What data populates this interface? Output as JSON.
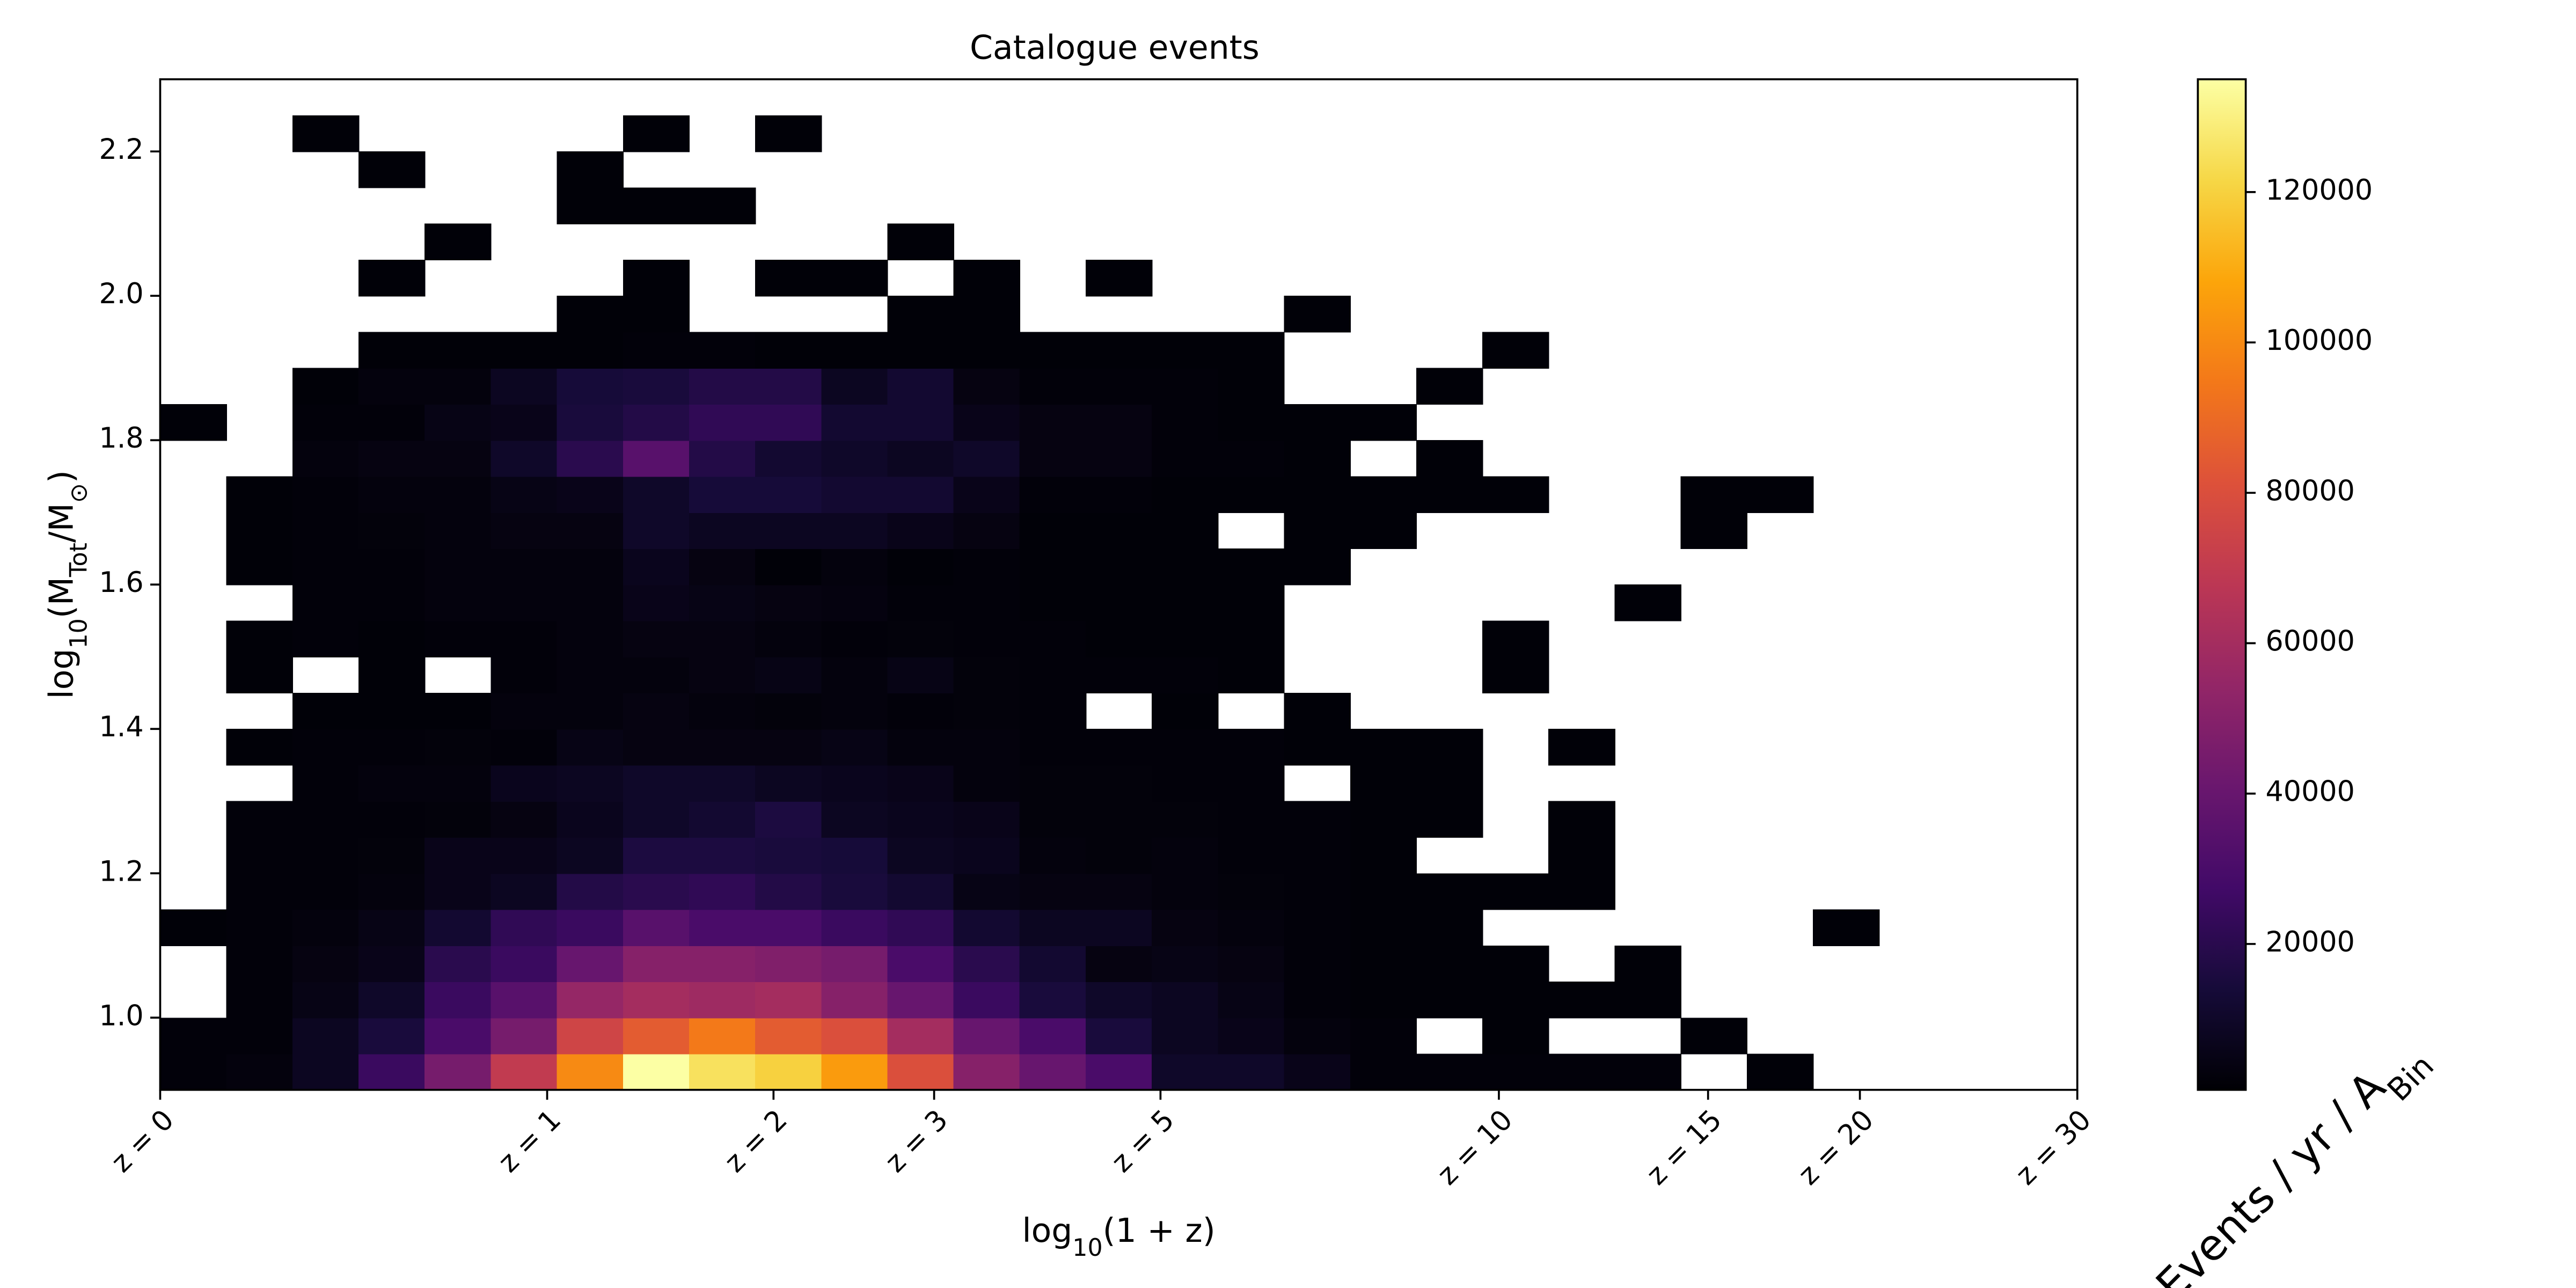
{
  "chart_data": {
    "type": "hist2d",
    "title": "Catalogue events",
    "xlabel": [
      "log",
      "10",
      "(1 + z)"
    ],
    "ylabel": [
      "log",
      "10",
      "(M",
      "Tot",
      "/M",
      "⊙",
      ")"
    ],
    "colorbar_label": [
      "Events / yr / A",
      "Bin"
    ],
    "colormap": "inferno",
    "xlim": [
      0,
      1.49136
    ],
    "ylim": [
      0.9,
      2.3
    ],
    "clim": [
      600,
      135000
    ],
    "xticks": [
      {
        "value": 0,
        "label": "z = 0"
      },
      {
        "value": 0.30103,
        "label": "z = 1"
      },
      {
        "value": 0.47712,
        "label": "z = 2"
      },
      {
        "value": 0.60206,
        "label": "z = 3"
      },
      {
        "value": 0.77815,
        "label": "z = 5"
      },
      {
        "value": 1.04139,
        "label": "z = 10"
      },
      {
        "value": 1.20412,
        "label": "z = 15"
      },
      {
        "value": 1.32222,
        "label": "z = 20"
      },
      {
        "value": 1.49136,
        "label": "z = 30"
      }
    ],
    "yticks": [
      {
        "value": 1,
        "label": "1.0"
      },
      1.2,
      1.4,
      1.6,
      1.8,
      {
        "value": 2,
        "label": "2.0"
      },
      2.2
    ],
    "cticks": [
      20000,
      40000,
      60000,
      80000,
      100000,
      120000
    ],
    "xbins": [
      0,
      0.0514,
      0.1029,
      0.1543,
      0.2057,
      0.2571,
      0.3086,
      0.36,
      0.4114,
      0.4628,
      0.5143,
      0.5657,
      0.6171,
      0.6685,
      0.72,
      0.7714,
      0.8228,
      0.8742,
      0.9257,
      0.9771,
      1.0285,
      1.0799,
      1.1314,
      1.1828,
      1.2342,
      1.2857,
      1.3371,
      1.3885,
      1.4399,
      1.4914
    ],
    "ybins": [
      0.9,
      0.95,
      1.0,
      1.05,
      1.1,
      1.15,
      1.2,
      1.25,
      1.3,
      1.35,
      1.4,
      1.45,
      1.5,
      1.55,
      1.6,
      1.65,
      1.7,
      1.75,
      1.8,
      1.85,
      1.9,
      1.95,
      2.0,
      2.05,
      2.1,
      2.15,
      2.2,
      2.25,
      2.3
    ],
    "values": [
      [
        2000,
        3000,
        8000,
        25000,
        45000,
        70000,
        100000,
        135000,
        125000,
        120000,
        105000,
        80000,
        50000,
        40000,
        30000,
        10000,
        10000,
        6000,
        2000,
        2000,
        2000,
        2000,
        2000,
        null,
        1500,
        null,
        null,
        null,
        null
      ],
      [
        2000,
        2000,
        8000,
        15000,
        30000,
        45000,
        75000,
        85000,
        95000,
        85000,
        80000,
        60000,
        40000,
        30000,
        15000,
        8000,
        6000,
        3000,
        2000,
        null,
        1500,
        null,
        null,
        1500,
        null,
        null,
        null,
        null,
        null
      ],
      [
        null,
        2000,
        5000,
        10000,
        25000,
        35000,
        55000,
        60000,
        58000,
        60000,
        50000,
        40000,
        25000,
        15000,
        10000,
        8000,
        5000,
        2000,
        1500,
        1500,
        1500,
        1500,
        1500,
        null,
        null,
        null,
        null,
        null,
        null
      ],
      [
        null,
        2000,
        4000,
        6000,
        20000,
        25000,
        40000,
        50000,
        50000,
        48000,
        45000,
        30000,
        20000,
        12000,
        4000,
        5000,
        4000,
        2000,
        1500,
        1500,
        1500,
        null,
        1500,
        null,
        null,
        null,
        null,
        null,
        null
      ],
      [
        1500,
        2000,
        3000,
        5000,
        12000,
        22000,
        25000,
        35000,
        30000,
        30000,
        25000,
        22000,
        12000,
        8000,
        8000,
        4000,
        3000,
        2000,
        1500,
        1500,
        null,
        null,
        null,
        null,
        null,
        1500,
        null,
        null,
        null
      ],
      [
        null,
        2000,
        2000,
        3000,
        6000,
        8000,
        18000,
        20000,
        22000,
        18000,
        15000,
        12000,
        5000,
        4000,
        4000,
        3000,
        2500,
        2000,
        1500,
        1500,
        1500,
        1500,
        null,
        null,
        null,
        null,
        null,
        null,
        null
      ],
      [
        null,
        2000,
        2000,
        2500,
        6000,
        6000,
        8000,
        16000,
        16000,
        15000,
        14000,
        8000,
        7000,
        3000,
        2500,
        3000,
        2000,
        2000,
        1500,
        null,
        null,
        1500,
        null,
        null,
        null,
        null,
        null,
        null,
        null
      ],
      [
        null,
        2000,
        2000,
        2000,
        2500,
        4000,
        7000,
        10000,
        12000,
        16000,
        8000,
        7000,
        6000,
        2500,
        2500,
        2500,
        2000,
        2000,
        1500,
        1500,
        null,
        1500,
        null,
        null,
        null,
        null,
        null,
        null,
        null
      ],
      [
        null,
        null,
        2000,
        3000,
        3000,
        7000,
        8000,
        10000,
        10000,
        8000,
        7000,
        6000,
        3000,
        2500,
        2500,
        2000,
        2000,
        null,
        1500,
        1500,
        null,
        null,
        null,
        null,
        null,
        null,
        null,
        null,
        null
      ],
      [
        null,
        1500,
        2000,
        2000,
        2500,
        2000,
        5000,
        4000,
        4000,
        4000,
        5000,
        3000,
        3000,
        2000,
        2000,
        2000,
        2000,
        1500,
        1500,
        1500,
        null,
        1500,
        null,
        null,
        null,
        null,
        null,
        null,
        null
      ],
      [
        null,
        null,
        1500,
        1500,
        1500,
        3000,
        3000,
        4000,
        3000,
        2500,
        3000,
        2000,
        2500,
        2000,
        null,
        1500,
        null,
        1500,
        null,
        null,
        null,
        null,
        null,
        null,
        null,
        null,
        null,
        null,
        null
      ],
      [
        null,
        1500,
        null,
        1500,
        null,
        2000,
        3000,
        3000,
        4000,
        5000,
        3000,
        5000,
        2500,
        2000,
        2000,
        2000,
        1500,
        null,
        null,
        null,
        1500,
        null,
        null,
        null,
        null,
        null,
        null,
        null,
        null
      ],
      [
        null,
        1500,
        2000,
        1500,
        2000,
        2000,
        3000,
        4000,
        4000,
        3000,
        2000,
        2500,
        2000,
        2000,
        1500,
        1500,
        1500,
        null,
        null,
        null,
        1500,
        null,
        null,
        null,
        null,
        null,
        null,
        null,
        null
      ],
      [
        null,
        null,
        2000,
        2000,
        3000,
        3000,
        3000,
        6000,
        5000,
        4000,
        3500,
        2000,
        2000,
        1500,
        1500,
        1500,
        1500,
        null,
        null,
        null,
        null,
        null,
        1500,
        null,
        null,
        null,
        null,
        null,
        null
      ],
      [
        null,
        1500,
        2000,
        2000,
        3000,
        3000,
        3000,
        7000,
        4000,
        1500,
        3000,
        1500,
        2000,
        1500,
        1500,
        1500,
        1500,
        1500,
        null,
        null,
        null,
        null,
        null,
        null,
        null,
        null,
        null,
        null,
        null
      ],
      [
        null,
        1500,
        2000,
        2500,
        3000,
        4000,
        4000,
        10000,
        8000,
        8000,
        8000,
        6000,
        4000,
        1500,
        1500,
        1500,
        null,
        1500,
        1500,
        null,
        null,
        null,
        null,
        1500,
        null,
        null,
        null,
        null,
        null
      ],
      [
        null,
        1500,
        2000,
        3000,
        3000,
        5000,
        6000,
        10000,
        14000,
        14000,
        12000,
        12000,
        6000,
        2000,
        2000,
        1500,
        1500,
        1500,
        1500,
        1500,
        1500,
        null,
        null,
        1500,
        1500,
        null,
        null,
        null,
        null
      ],
      [
        null,
        null,
        3000,
        4000,
        4000,
        10000,
        20000,
        35000,
        18000,
        12000,
        10000,
        8000,
        10000,
        4000,
        4000,
        2000,
        2000,
        1500,
        null,
        1500,
        null,
        null,
        null,
        null,
        null,
        null,
        null,
        null,
        null
      ],
      [
        1500,
        null,
        2000,
        2000,
        5000,
        6000,
        15000,
        18000,
        22000,
        22000,
        12000,
        12000,
        6000,
        4000,
        4000,
        2000,
        1500,
        1500,
        1500,
        null,
        null,
        null,
        null,
        null,
        null,
        null,
        null,
        null,
        null
      ],
      [
        null,
        null,
        1500,
        3000,
        3000,
        8000,
        14000,
        15000,
        18000,
        18000,
        8000,
        12000,
        4000,
        2000,
        2000,
        2000,
        1500,
        null,
        null,
        1500,
        null,
        null,
        null,
        null,
        null,
        null,
        null,
        null,
        null
      ],
      [
        null,
        null,
        null,
        1500,
        1500,
        1500,
        1500,
        2000,
        2000,
        1500,
        1500,
        1500,
        1500,
        1500,
        1500,
        1500,
        1500,
        null,
        null,
        null,
        1500,
        null,
        null,
        null,
        null,
        null,
        null,
        null,
        null
      ],
      [
        null,
        null,
        null,
        null,
        null,
        null,
        1500,
        1500,
        null,
        null,
        null,
        1500,
        1500,
        null,
        null,
        null,
        null,
        1500,
        null,
        null,
        null,
        null,
        null,
        null,
        null,
        null,
        null,
        null,
        null
      ],
      [
        null,
        null,
        null,
        1500,
        null,
        null,
        null,
        1500,
        null,
        1500,
        1500,
        null,
        1500,
        null,
        1500,
        null,
        null,
        null,
        null,
        null,
        null,
        null,
        null,
        null,
        null,
        null,
        null,
        null,
        null
      ],
      [
        null,
        null,
        null,
        null,
        1500,
        null,
        null,
        null,
        null,
        null,
        null,
        1500,
        null,
        null,
        null,
        null,
        null,
        null,
        null,
        null,
        null,
        null,
        null,
        null,
        null,
        null,
        null,
        null,
        null
      ],
      [
        null,
        null,
        null,
        null,
        null,
        null,
        1500,
        1500,
        1500,
        null,
        null,
        null,
        null,
        null,
        null,
        null,
        null,
        null,
        null,
        null,
        null,
        null,
        null,
        null,
        null,
        null,
        null,
        null,
        null
      ],
      [
        null,
        null,
        null,
        1500,
        null,
        null,
        1500,
        null,
        null,
        null,
        null,
        null,
        null,
        null,
        null,
        null,
        null,
        null,
        null,
        null,
        null,
        null,
        null,
        null,
        null,
        null,
        null,
        null,
        null
      ],
      [
        null,
        null,
        1500,
        null,
        null,
        null,
        null,
        1500,
        null,
        1500,
        null,
        null,
        null,
        null,
        null,
        null,
        null,
        null,
        null,
        null,
        null,
        null,
        null,
        null,
        null,
        null,
        null,
        null,
        null
      ],
      [
        null,
        null,
        null,
        null,
        null,
        null,
        null,
        null,
        null,
        null,
        null,
        null,
        null,
        null,
        null,
        null,
        null,
        null,
        null,
        null,
        null,
        null,
        null,
        null,
        null,
        null,
        null,
        null,
        null
      ]
    ]
  }
}
